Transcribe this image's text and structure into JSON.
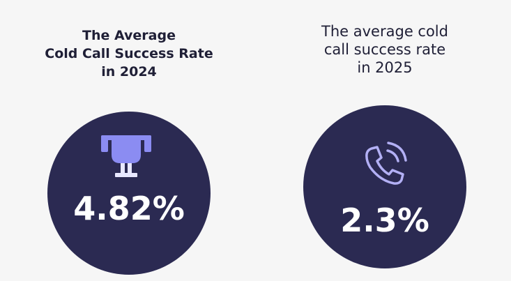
{
  "panels": [
    {
      "title_lines": [
        "The Average",
        "Cold Call Success Rate",
        "in 2024"
      ],
      "value": "4.82%"
    },
    {
      "title_lines": [
        "The average cold",
        "call success rate",
        "in 2025"
      ],
      "value": "2.3%"
    }
  ]
}
